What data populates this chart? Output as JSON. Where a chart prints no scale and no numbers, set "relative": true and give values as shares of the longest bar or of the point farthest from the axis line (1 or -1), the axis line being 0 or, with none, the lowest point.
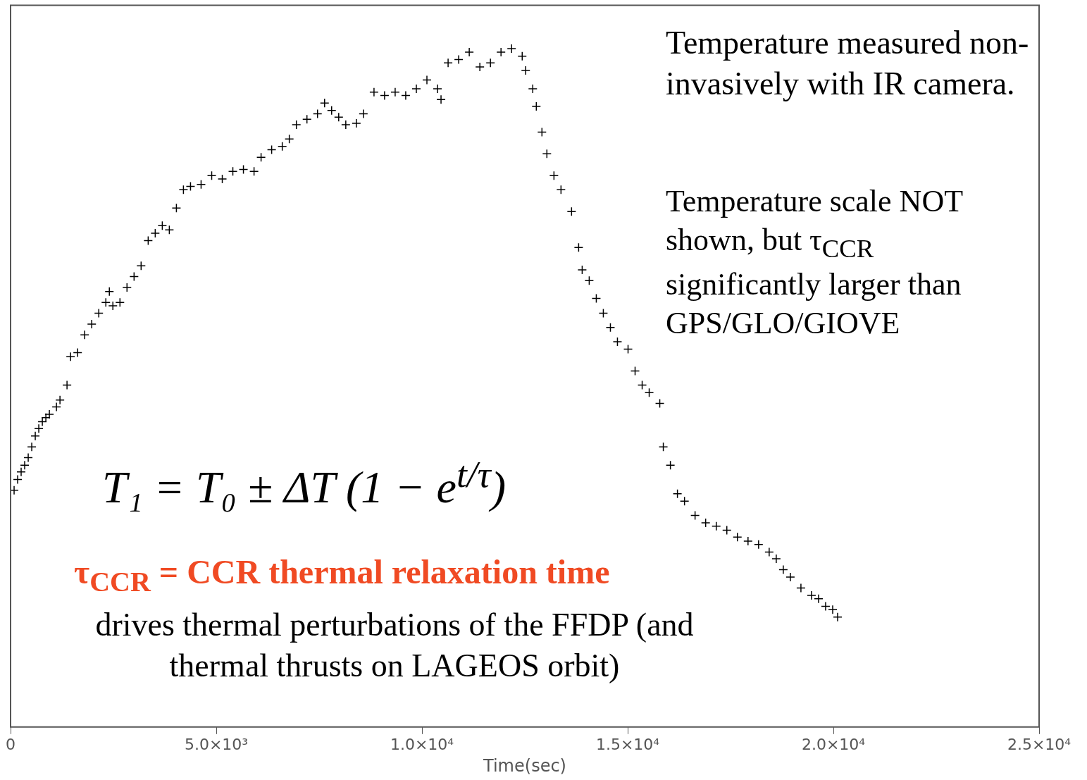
{
  "chart_data": {
    "type": "scatter",
    "relative": true,
    "marker": "cross",
    "grid": false,
    "legend": false,
    "xlabel": "Time(sec)",
    "xlim": [
      0,
      25000
    ],
    "xticks": [
      {
        "value": 0,
        "label": "0"
      },
      {
        "value": 5000,
        "label": "5.0×10³"
      },
      {
        "value": 10000,
        "label": "1.0×10⁴"
      },
      {
        "value": 15000,
        "label": "1.5×10⁴"
      },
      {
        "value": 20000,
        "label": "2.0×10⁴"
      },
      {
        "value": 25000,
        "label": "2.5×10⁴"
      }
    ],
    "annotations": [
      "Temperature measured non-invasively with IR camera.",
      "Temperature scale NOT shown, but τ$_{CCR}$ significantly larger than GPS/GLO/GIOVE",
      "T₁ = T₀ ± ΔT (1 − e$^{t/τ}$)",
      "τ$_{CCR}$ = CCR thermal relaxation time",
      "drives thermal perturbations of the FFDP (and thermal thrusts on LAGEOS orbit)"
    ],
    "series": [
      {
        "color": "#000000",
        "x": [
          86,
          172,
          257,
          343,
          429,
          515,
          600,
          686,
          772,
          858,
          943,
          1115,
          1201,
          1372,
          1458,
          1630,
          1801,
          1973,
          2144,
          2316,
          2401,
          2487,
          2659,
          2830,
          3002,
          3173,
          3345,
          3516,
          3688,
          3859,
          4031,
          4202,
          4374,
          4631,
          4889,
          5146,
          5403,
          5660,
          5918,
          6089,
          6346,
          6604,
          6775,
          6947,
          7204,
          7461,
          7633,
          7804,
          7976,
          8148,
          8405,
          8576,
          8834,
          9091,
          9348,
          9605,
          9863,
          10120,
          10377,
          10463,
          10635,
          10892,
          11149,
          11407,
          11664,
          11921,
          12178,
          12436,
          12521,
          12693,
          12779,
          12916,
          13036,
          13208,
          13379,
          13636,
          13808,
          13894,
          14065,
          14237,
          14408,
          14580,
          14751,
          15009,
          15180,
          15352,
          15523,
          15780,
          15866,
          16038,
          16209,
          16381,
          16638,
          16895,
          17153,
          17410,
          17667,
          17925,
          18182,
          18439,
          18611,
          18782,
          18954,
          19211,
          19468,
          19640,
          19811,
          19983,
          20103
        ],
        "values": [
          0.349,
          0.365,
          0.376,
          0.386,
          0.397,
          0.413,
          0.429,
          0.44,
          0.45,
          0.456,
          0.461,
          0.472,
          0.482,
          0.504,
          0.546,
          0.552,
          0.578,
          0.594,
          0.61,
          0.626,
          0.642,
          0.621,
          0.626,
          0.648,
          0.664,
          0.68,
          0.717,
          0.728,
          0.739,
          0.733,
          0.765,
          0.792,
          0.797,
          0.8,
          0.813,
          0.808,
          0.819,
          0.822,
          0.819,
          0.84,
          0.851,
          0.856,
          0.867,
          0.888,
          0.896,
          0.904,
          0.92,
          0.909,
          0.899,
          0.888,
          0.89,
          0.904,
          0.936,
          0.931,
          0.936,
          0.931,
          0.941,
          0.954,
          0.941,
          0.925,
          0.979,
          0.984,
          0.995,
          0.973,
          0.979,
          0.995,
          1,
          0.989,
          0.968,
          0.941,
          0.915,
          0.877,
          0.845,
          0.813,
          0.792,
          0.76,
          0.707,
          0.674,
          0.658,
          0.632,
          0.61,
          0.589,
          0.568,
          0.557,
          0.525,
          0.504,
          0.493,
          0.477,
          0.413,
          0.386,
          0.344,
          0.333,
          0.312,
          0.301,
          0.296,
          0.29,
          0.28,
          0.274,
          0.269,
          0.258,
          0.248,
          0.232,
          0.221,
          0.205,
          0.194,
          0.189,
          0.178,
          0.173,
          0.162
        ]
      }
    ]
  }
}
